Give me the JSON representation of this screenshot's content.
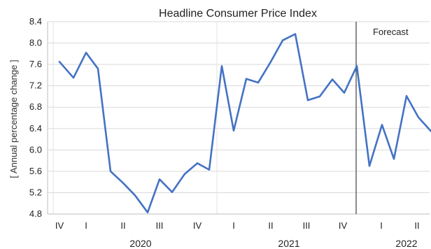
{
  "chart_data": {
    "type": "line",
    "title": "Headline Consumer Price Index",
    "ylabel": "[ Annual percentage change ]",
    "ylim": [
      4.8,
      8.4
    ],
    "yticks": [
      "4.8",
      "5.2",
      "5.6",
      "6.0",
      "6.4",
      "6.8",
      "7.2",
      "7.6",
      "8.0",
      "8.4"
    ],
    "quarter_labels": [
      "IV",
      "I",
      "II",
      "III",
      "IV",
      "I",
      "II",
      "III",
      "IV",
      "I",
      "II"
    ],
    "year_labels": [
      "2020",
      "2021",
      "2022"
    ],
    "annotation": "Forecast",
    "grid": true,
    "series": [
      {
        "color": "#4472c4",
        "values": [
          7.65,
          7.35,
          7.82,
          7.52,
          5.6,
          5.38,
          5.15,
          4.83,
          5.45,
          5.21,
          5.55,
          5.75,
          5.63,
          7.57,
          6.36,
          7.33,
          7.26,
          7.65,
          8.05,
          8.17,
          6.93,
          7.0,
          7.32,
          7.07,
          7.57,
          5.7,
          6.47,
          5.83,
          7.01,
          6.61,
          6.35
        ]
      }
    ]
  }
}
